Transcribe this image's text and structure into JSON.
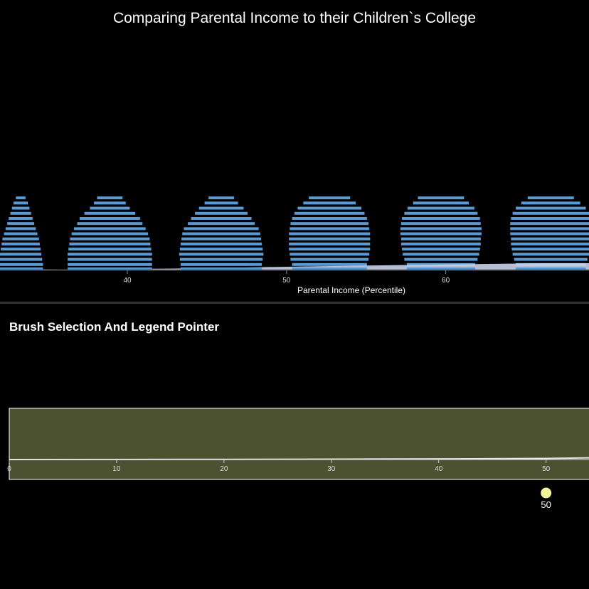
{
  "page": {
    "title": "Comparing Parental Income to their Children`s College",
    "section_title": "Brush Selection And Legend Pointer"
  },
  "colors": {
    "background": "#000000",
    "bar": "#5b9bd5",
    "area": "#c9d3ea",
    "brush_fill": "#4b5131",
    "brush_stroke": "#ffffff",
    "pointer": "#f5f59a"
  },
  "chart_data": [
    {
      "type": "bar",
      "xlabel": "Parental Income (Percentile)",
      "ylabel": "",
      "title": "",
      "x_domain": [
        32,
        69
      ],
      "x_ticks": [
        40,
        50,
        60
      ],
      "groups": [
        {
          "center": 33.3,
          "widths": [
            0.6,
            0.9,
            1.1,
            1.3,
            1.5,
            1.7,
            1.9,
            2.1,
            2.3,
            2.4,
            2.5,
            2.6,
            2.7,
            2.8
          ]
        },
        {
          "center": 38.9,
          "widths": [
            1.6,
            2.0,
            2.5,
            3.2,
            3.8,
            4.1,
            4.5,
            4.8,
            5.0,
            5.1,
            5.2,
            5.3,
            5.3,
            5.3
          ]
        },
        {
          "center": 45.9,
          "widths": [
            1.6,
            2.1,
            2.8,
            3.3,
            3.8,
            4.2,
            4.7,
            4.9,
            5.0,
            5.1,
            5.2,
            5.3,
            5.2,
            5.1
          ]
        },
        {
          "center": 52.7,
          "widths": [
            2.6,
            3.3,
            4.0,
            4.4,
            4.7,
            4.9,
            5.0,
            5.1,
            5.1,
            5.1,
            5.1,
            5.0,
            4.9,
            4.7
          ]
        },
        {
          "center": 59.7,
          "widths": [
            2.9,
            3.5,
            4.2,
            4.6,
            4.9,
            5.0,
            5.1,
            5.1,
            5.0,
            5.0,
            4.9,
            4.8,
            4.6,
            4.3
          ]
        },
        {
          "center": 66.6,
          "widths": [
            2.9,
            3.7,
            4.4,
            4.8,
            5.0,
            5.1,
            5.1,
            5.1,
            5.0,
            5.0,
            4.9,
            4.8,
            4.6,
            4.4
          ]
        }
      ],
      "area": [
        {
          "x": 32,
          "y": 0.15
        },
        {
          "x": 36,
          "y": 0.05
        },
        {
          "x": 40,
          "y": 0.15
        },
        {
          "x": 44,
          "y": 0.3
        },
        {
          "x": 48,
          "y": 0.55
        },
        {
          "x": 52,
          "y": 0.8
        },
        {
          "x": 56,
          "y": 1.0
        },
        {
          "x": 60,
          "y": 1.2
        },
        {
          "x": 64,
          "y": 1.4
        },
        {
          "x": 66,
          "y": 1.5
        },
        {
          "x": 69,
          "y": 1.5
        }
      ]
    },
    {
      "type": "area",
      "xlabel": "",
      "ylabel": "",
      "title": "",
      "x_domain": [
        0,
        54
      ],
      "x_ticks": [
        0,
        10,
        20,
        30,
        40,
        50
      ],
      "line": [
        {
          "x": 0,
          "y": 0.0
        },
        {
          "x": 10,
          "y": 0.02
        },
        {
          "x": 20,
          "y": 0.05
        },
        {
          "x": 30,
          "y": 0.08
        },
        {
          "x": 40,
          "y": 0.14
        },
        {
          "x": 50,
          "y": 0.26
        },
        {
          "x": 54,
          "y": 0.4
        }
      ],
      "pointer": {
        "x": 50,
        "label": "50"
      }
    }
  ]
}
